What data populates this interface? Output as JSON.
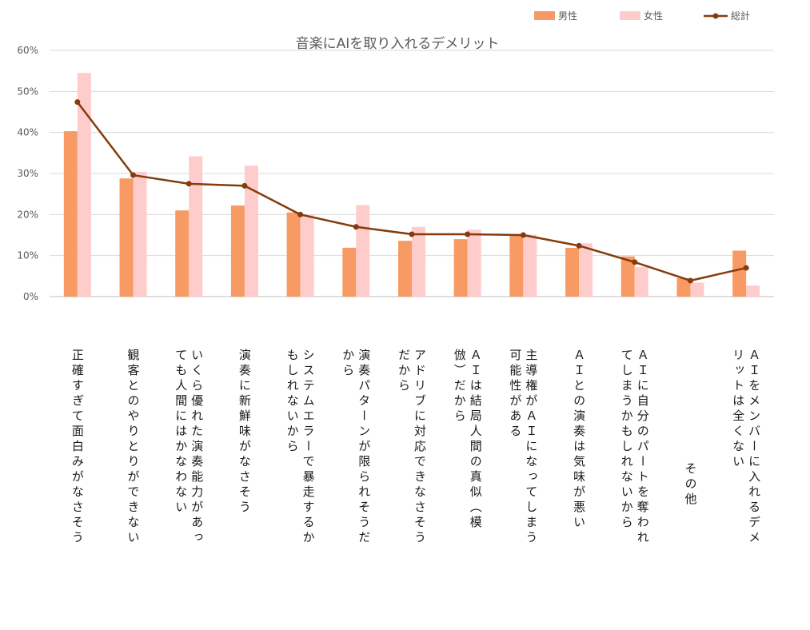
{
  "chart_data": {
    "type": "bar",
    "title": "音楽にAIを取り入れるデメリット",
    "xlabel": "",
    "ylabel": "",
    "ylim": [
      0,
      60
    ],
    "yticks": [
      "0%",
      "10%",
      "20%",
      "30%",
      "40%",
      "50%",
      "60%"
    ],
    "grid": true,
    "legend_position": "top-right",
    "categories": [
      [
        "正確すぎて面白みがなさそう"
      ],
      [
        "観客とのやりとりができない"
      ],
      [
        "いくら優れた演奏能力があっ",
        "ても人間にはかなわない"
      ],
      [
        "演奏に新鮮味がなさそう"
      ],
      [
        "システムエラーで暴走するか",
        "もしれないから"
      ],
      [
        "演奏パターンが限られそうだ",
        "から"
      ],
      [
        "アドリブに対応できなさそう",
        "だから"
      ],
      [
        "ＡＩは結局人間の真似（模",
        "倣）だから"
      ],
      [
        "主導権がＡＩになってしまう",
        "可能性がある"
      ],
      [
        "ＡＩとの演奏は気味が悪い"
      ],
      [
        "ＡＩに自分のパートを奪われ",
        "てしまうかもしれないから"
      ],
      [
        "その他"
      ],
      [
        "ＡＩをメンバーに入れるデメ",
        "リットは全くない"
      ]
    ],
    "series": [
      {
        "name": "男性",
        "kind": "bar",
        "color": "#F79A63",
        "values": [
          40.3,
          28.8,
          21.0,
          22.2,
          20.5,
          11.9,
          13.6,
          14.0,
          15.1,
          11.9,
          9.8,
          4.5,
          11.2
        ]
      },
      {
        "name": "女性",
        "kind": "bar",
        "color": "#FFCCCC",
        "values": [
          54.5,
          30.4,
          34.2,
          31.9,
          20.0,
          22.3,
          17.0,
          16.3,
          15.1,
          13.0,
          7.2,
          3.4,
          2.7
        ]
      },
      {
        "name": "総計",
        "kind": "line",
        "color": "#843C0C",
        "values": [
          47.4,
          29.6,
          27.5,
          27.0,
          20.0,
          17.0,
          15.2,
          15.2,
          15.0,
          12.4,
          8.4,
          3.9,
          7.0
        ]
      }
    ]
  }
}
